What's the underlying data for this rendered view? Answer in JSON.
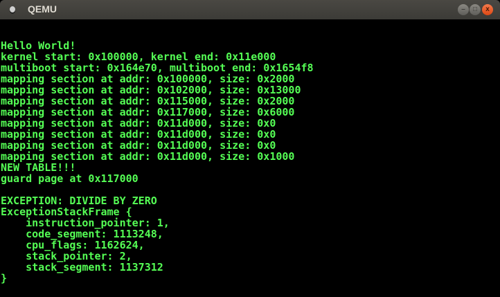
{
  "window": {
    "title": "QEMU",
    "buttons": {
      "minimize": "–",
      "maximize": "□",
      "close": "x"
    }
  },
  "terminal": {
    "text_color": "#55ff55",
    "background": "#000000",
    "lines": [
      "Hello World!",
      "kernel start: 0x100000, kernel end: 0x11e000",
      "multiboot start: 0x164e70, multiboot end: 0x1654f8",
      "mapping section at addr: 0x100000, size: 0x2000",
      "mapping section at addr: 0x102000, size: 0x13000",
      "mapping section at addr: 0x115000, size: 0x2000",
      "mapping section at addr: 0x117000, size: 0x6000",
      "mapping section at addr: 0x11d000, size: 0x0",
      "mapping section at addr: 0x11d000, size: 0x0",
      "mapping section at addr: 0x11d000, size: 0x0",
      "mapping section at addr: 0x11d000, size: 0x1000",
      "NEW TABLE!!!",
      "guard page at 0x117000",
      "",
      "EXCEPTION: DIVIDE BY ZERO",
      "ExceptionStackFrame {",
      "    instruction_pointer: 1,",
      "    code_segment: 1113248,",
      "    cpu_flags: 1162624,",
      "    stack_pointer: 2,",
      "    stack_segment: 1137312",
      "}"
    ]
  }
}
